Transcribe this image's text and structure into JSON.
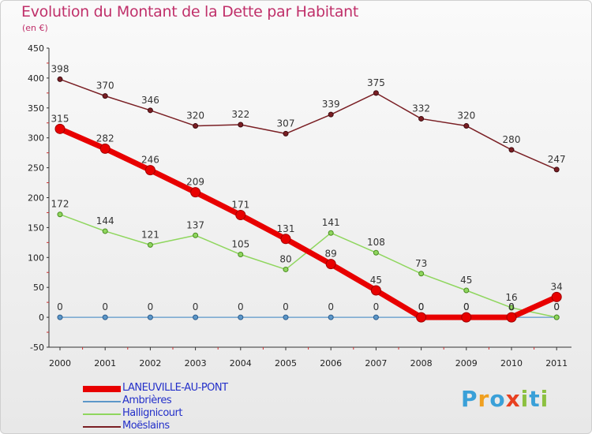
{
  "title": "Evolution du Montant de la Dette par Habitant",
  "unit_label": "(en €)",
  "logo": {
    "text": "Proxiti",
    "letters": [
      {
        "ch": "P",
        "color": "#3aa0d8"
      },
      {
        "ch": "r",
        "color": "#f0a020"
      },
      {
        "ch": "o",
        "color": "#3aa0d8"
      },
      {
        "ch": "x",
        "color": "#e84020"
      },
      {
        "ch": "i",
        "color": "#8cc040"
      },
      {
        "ch": "t",
        "color": "#3aa0d8"
      },
      {
        "ch": "i",
        "color": "#8cc040"
      }
    ]
  },
  "chart_data": {
    "type": "line",
    "title": "Evolution du Montant de la Dette par Habitant",
    "ylabel": "(en €)",
    "xlabel": "",
    "x": [
      "2000",
      "2001",
      "2002",
      "2003",
      "2004",
      "2005",
      "2006",
      "2007",
      "2008",
      "2009",
      "2010",
      "2011"
    ],
    "ylim": [
      -50,
      450
    ],
    "yticks": [
      -50,
      0,
      50,
      100,
      150,
      200,
      250,
      300,
      350,
      400,
      450
    ],
    "grid": false,
    "legend_position": "bottom-left",
    "series": [
      {
        "name": "LANEUVILLE-AU-PONT",
        "color": "#e80000",
        "values": [
          315,
          282,
          246,
          209,
          171,
          131,
          89,
          45,
          0,
          0,
          0,
          34
        ]
      },
      {
        "name": "Ambrières",
        "color": "#5c97c9",
        "values": [
          0,
          0,
          0,
          0,
          0,
          0,
          0,
          0,
          0,
          0,
          0,
          0
        ]
      },
      {
        "name": "Hallignicourt",
        "color": "#8fd65e",
        "values": [
          172,
          144,
          121,
          137,
          105,
          80,
          141,
          108,
          73,
          45,
          16,
          0
        ]
      },
      {
        "name": "Moëslains",
        "color": "#7a1f24",
        "values": [
          398,
          370,
          346,
          320,
          322,
          307,
          339,
          375,
          332,
          320,
          280,
          247
        ]
      }
    ]
  }
}
